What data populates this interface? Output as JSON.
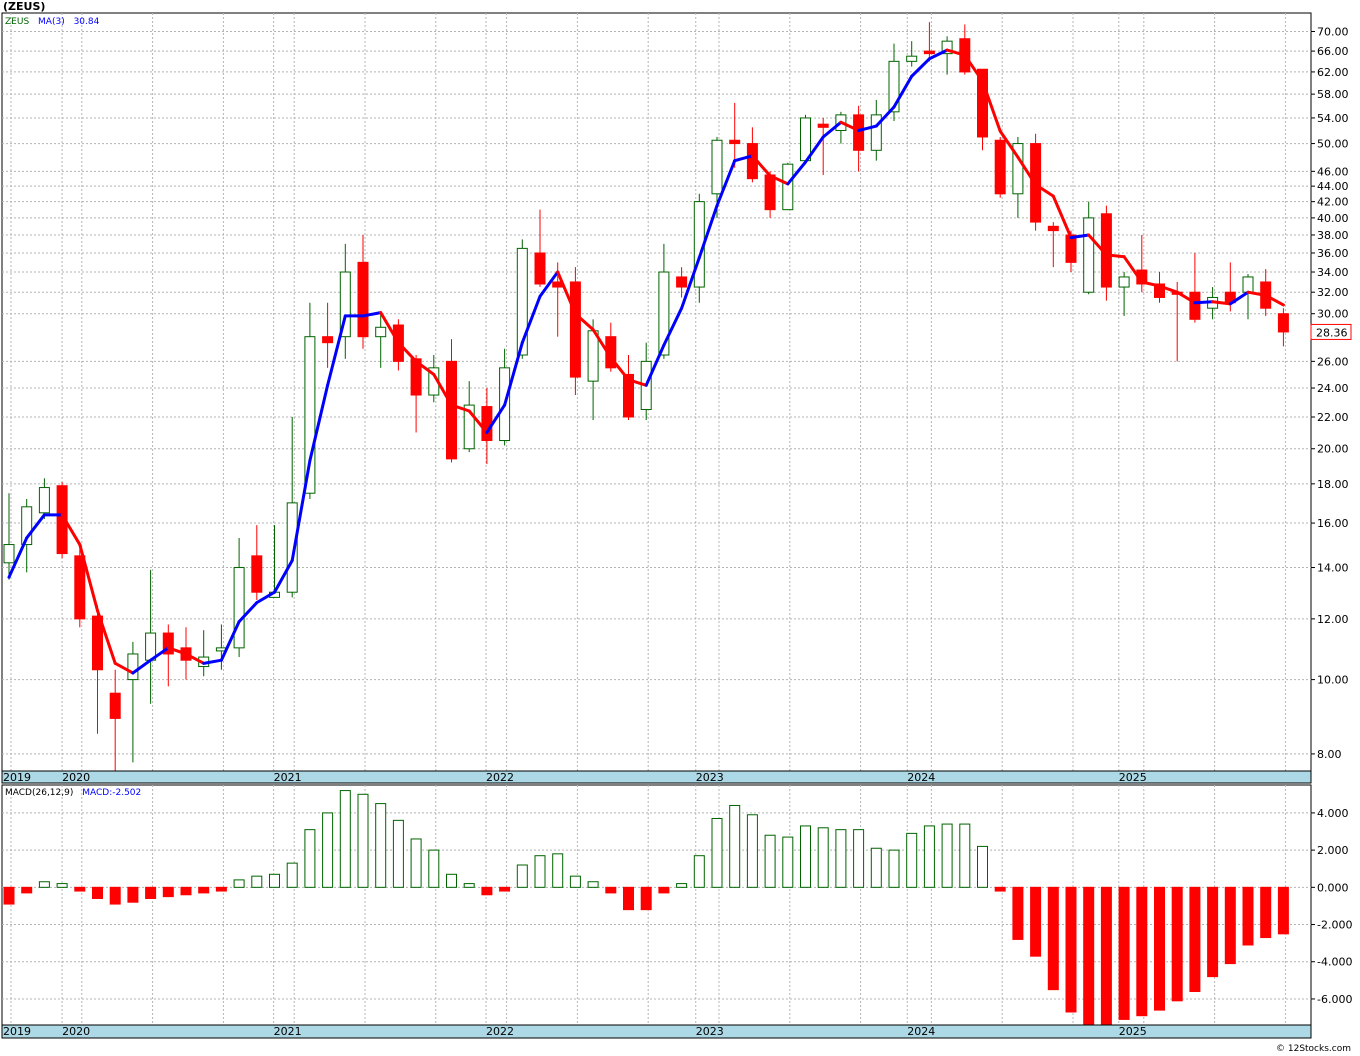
{
  "title": "(ZEUS)",
  "credit": "© 12Stocks.com",
  "colors": {
    "up": "#006400",
    "down": "#ff0000",
    "ma_up": "#0000ff",
    "ma_down": "#ff0000",
    "band": "#add8e6",
    "grid": "#b4b4b4",
    "last_price_box": "#ff0000"
  },
  "legend": {
    "ticker": "ZEUS",
    "ma_label": "MA(3)",
    "ma_value": "30.84"
  },
  "last_price": {
    "value": 28.36,
    "label": "28.36"
  },
  "macd_legend": {
    "params": "MACD(26,12,9)",
    "value_label": "MACD:-2.502"
  },
  "chart_data": [
    {
      "type": "candlestick",
      "name": "price",
      "y_scale": "log",
      "ylim": [
        7.6,
        74
      ],
      "y_ticks": [
        "70.00",
        "66.00",
        "62.00",
        "58.00",
        "54.00",
        "50.00",
        "46.00",
        "44.00",
        "42.00",
        "40.00",
        "38.00",
        "36.00",
        "34.00",
        "32.00",
        "30.00",
        "26.00",
        "24.00",
        "22.00",
        "20.00",
        "18.00",
        "16.00",
        "14.00",
        "12.00",
        "10.00",
        "8.00"
      ],
      "x_labels": [
        "2019",
        "2020",
        "2021",
        "2022",
        "2023",
        "2024",
        "2025"
      ],
      "candles": [
        [
          14.2,
          15.0,
          17.5,
          13.5
        ],
        [
          15.0,
          16.8,
          17.2,
          13.8
        ],
        [
          16.5,
          17.8,
          18.3,
          16.2
        ],
        [
          17.9,
          14.6,
          18.1,
          14.4
        ],
        [
          14.5,
          12.0,
          14.8,
          11.7
        ],
        [
          12.1,
          10.3,
          12.5,
          8.5
        ],
        [
          9.6,
          8.9,
          10.3,
          7.6
        ],
        [
          10.0,
          10.8,
          11.2,
          7.8
        ],
        [
          10.6,
          11.5,
          13.9,
          9.3
        ],
        [
          11.5,
          10.8,
          11.8,
          9.8
        ],
        [
          11.0,
          10.6,
          11.7,
          10.0
        ],
        [
          10.4,
          10.7,
          11.6,
          10.1
        ],
        [
          10.9,
          11.0,
          11.8,
          10.3
        ],
        [
          11.0,
          14.0,
          15.3,
          10.7
        ],
        [
          14.5,
          13.0,
          15.9,
          12.7
        ],
        [
          12.8,
          13.0,
          15.9,
          12.8
        ],
        [
          13.0,
          17.0,
          22.0,
          12.8
        ],
        [
          17.5,
          28.0,
          31.0,
          17.2
        ],
        [
          28.0,
          27.5,
          31.0,
          25.5
        ],
        [
          28.0,
          34.0,
          37.0,
          26.2
        ],
        [
          35.0,
          28.0,
          38.0,
          27.0
        ],
        [
          28.0,
          28.8,
          30.0,
          25.5
        ],
        [
          29.0,
          26.0,
          29.5,
          25.3
        ],
        [
          26.2,
          23.5,
          26.5,
          21.0
        ],
        [
          23.5,
          25.5,
          26.5,
          23.0
        ],
        [
          26.0,
          19.4,
          27.8,
          19.2
        ],
        [
          20.0,
          22.8,
          24.5,
          19.8
        ],
        [
          22.7,
          20.5,
          24.0,
          19.1
        ],
        [
          20.5,
          25.5,
          27.0,
          20.2
        ],
        [
          26.5,
          36.5,
          37.5,
          26.2
        ],
        [
          36.0,
          32.8,
          41.0,
          32.5
        ],
        [
          33.0,
          32.5,
          35.0,
          28.0
        ],
        [
          33.0,
          24.8,
          34.5,
          23.5
        ],
        [
          24.5,
          28.5,
          29.5,
          21.8
        ],
        [
          28.0,
          25.5,
          29.2,
          25.2
        ],
        [
          25.0,
          22.0,
          26.5,
          21.8
        ],
        [
          22.5,
          26.0,
          27.5,
          21.8
        ],
        [
          26.5,
          34.0,
          37.0,
          26.2
        ],
        [
          33.5,
          32.5,
          34.5,
          31.5
        ],
        [
          32.5,
          42.0,
          43.0,
          31.0
        ],
        [
          43.0,
          50.5,
          51.0,
          40.0
        ],
        [
          50.5,
          50.0,
          56.5,
          46.5
        ],
        [
          50.0,
          45.0,
          52.5,
          44.5
        ],
        [
          45.5,
          41.0,
          46.0,
          40.0
        ],
        [
          41.0,
          47.0,
          47.2,
          41.0
        ],
        [
          47.5,
          54.0,
          54.5,
          47.0
        ],
        [
          53.0,
          52.5,
          54.0,
          45.5
        ],
        [
          52.0,
          54.5,
          55.0,
          50.0
        ],
        [
          54.5,
          49.0,
          56.0,
          46.0
        ],
        [
          49.0,
          54.5,
          57.0,
          47.5
        ],
        [
          55.0,
          64.0,
          67.5,
          53.5
        ],
        [
          64.0,
          65.0,
          68.0,
          63.0
        ],
        [
          66.0,
          65.5,
          72.0,
          64.0
        ],
        [
          65.5,
          68.0,
          69.0,
          61.5
        ],
        [
          68.5,
          62.0,
          71.5,
          61.5
        ],
        [
          62.5,
          51.0,
          62.5,
          49.0
        ],
        [
          50.5,
          43.0,
          51.0,
          42.5
        ],
        [
          43.0,
          50.0,
          51.0,
          40.0
        ],
        [
          50.0,
          39.5,
          51.5,
          38.5
        ],
        [
          39.0,
          38.5,
          39.5,
          34.5
        ],
        [
          38.0,
          35.0,
          38.5,
          34.0
        ],
        [
          32.0,
          40.0,
          42.0,
          31.8
        ],
        [
          40.5,
          32.5,
          41.5,
          31.2
        ],
        [
          32.5,
          33.5,
          34.0,
          29.8
        ],
        [
          34.2,
          32.8,
          38.0,
          32.0
        ],
        [
          32.8,
          31.5,
          34.0,
          31.0
        ],
        [
          32.0,
          31.8,
          33.0,
          26.0
        ],
        [
          32.0,
          29.5,
          36.0,
          29.2
        ],
        [
          30.5,
          31.5,
          32.5,
          29.5
        ],
        [
          32.0,
          31.0,
          35.0,
          30.2
        ],
        [
          32.0,
          33.5,
          33.8,
          29.5
        ],
        [
          33.0,
          30.5,
          34.3,
          29.8
        ],
        [
          30.0,
          28.4,
          30.5,
          27.2
        ]
      ],
      "ma3": [
        13.6,
        15.3,
        16.4,
        16.4,
        15.0,
        12.3,
        10.5,
        10.2,
        10.6,
        11.0,
        10.8,
        10.5,
        10.6,
        11.9,
        12.6,
        13.0,
        14.3,
        19.3,
        24.2,
        29.8,
        29.8,
        30.1,
        27.5,
        26.0,
        25.0,
        22.8,
        22.4,
        21.0,
        22.8,
        27.5,
        31.6,
        34.0,
        30.0,
        28.6,
        26.3,
        24.6,
        24.2,
        27.3,
        30.5,
        35.5,
        41.5,
        47.5,
        48.2,
        45.4,
        44.3,
        47.3,
        51.0,
        53.3,
        52.0,
        52.7,
        55.8,
        61.2,
        64.5,
        66.2,
        65.2,
        60.3,
        51.9,
        48.0,
        44.2,
        42.7,
        37.7,
        38.0,
        35.8,
        35.6,
        33.0,
        32.6,
        32.0,
        31.0,
        31.1,
        30.9,
        32.0,
        31.7,
        30.8
      ]
    },
    {
      "type": "bar",
      "name": "macd",
      "ylim": [
        -7.4,
        5.5
      ],
      "y_ticks": [
        "4.000",
        "2.000",
        "0.000",
        "-2.000",
        "-4.000",
        "-6.000"
      ],
      "x_labels": [
        "2019",
        "2020",
        "2021",
        "2022",
        "2023",
        "2024",
        "2025"
      ],
      "values": [
        -0.9,
        -0.3,
        0.3,
        0.2,
        -0.2,
        -0.6,
        -0.9,
        -0.8,
        -0.6,
        -0.5,
        -0.4,
        -0.3,
        -0.2,
        0.4,
        0.6,
        0.7,
        1.3,
        3.1,
        4.0,
        5.2,
        5.0,
        4.5,
        3.6,
        2.6,
        2.0,
        0.7,
        0.2,
        -0.4,
        -0.2,
        1.2,
        1.7,
        1.8,
        0.6,
        0.3,
        -0.3,
        -1.2,
        -1.2,
        -0.3,
        0.2,
        1.7,
        3.7,
        4.4,
        3.9,
        2.8,
        2.7,
        3.3,
        3.2,
        3.1,
        3.1,
        2.1,
        2.0,
        2.9,
        3.3,
        3.4,
        3.4,
        2.2,
        -0.2,
        -2.8,
        -3.7,
        -5.5,
        -6.7,
        -7.4,
        -7.4,
        -7.1,
        -6.9,
        -6.6,
        -6.1,
        -5.6,
        -4.8,
        -4.1,
        -3.1,
        -2.7,
        -2.5
      ]
    }
  ]
}
